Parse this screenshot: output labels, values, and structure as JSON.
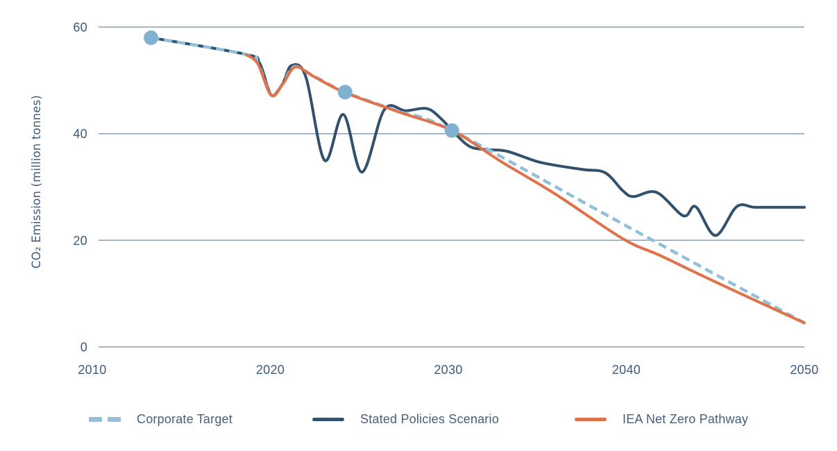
{
  "chart_data": {
    "type": "line",
    "title": "",
    "xlabel": "",
    "ylabel": "CO₂ Emission (million tonnes)",
    "xlim": [
      2010,
      2050
    ],
    "ylim": [
      0,
      60
    ],
    "x_ticks": [
      2010,
      2020,
      2030,
      2040,
      2050
    ],
    "y_ticks": [
      0,
      20,
      40,
      60
    ],
    "grid": "horizontal-only",
    "legend_position": "bottom",
    "colors": {
      "background": "#ffffff",
      "grid": "#8b9cb3",
      "tick_text": "#3d5a7a",
      "axis_title_text": "#3d5a7a",
      "legend_text": "#44607b"
    },
    "series": [
      {
        "name": "Corporate Target",
        "style": "dashed",
        "color": "#92c0d9",
        "width": 4.5,
        "dash": "12 7",
        "points": [
          [
            2013.3,
            58
          ],
          [
            2018.6,
            54.9
          ],
          [
            2019.3,
            53.2
          ],
          [
            2020.05,
            47.3
          ],
          [
            2020.7,
            49.4
          ],
          [
            2021.35,
            52.6
          ],
          [
            2022.4,
            50.9
          ],
          [
            2024.2,
            47.8
          ],
          [
            2027.2,
            44.2
          ],
          [
            2030.2,
            40.6
          ],
          [
            2040,
            22.7
          ],
          [
            2050,
            4.5
          ]
        ]
      },
      {
        "name": "Stated Policies Scenario",
        "style": "solid",
        "color": "#31516e",
        "width": 4,
        "dash": "",
        "points": [
          [
            2013.3,
            58
          ],
          [
            2018.6,
            54.9
          ],
          [
            2019.4,
            53.2
          ],
          [
            2020.05,
            47.3
          ],
          [
            2020.7,
            49.5
          ],
          [
            2021.2,
            52.8
          ],
          [
            2022.0,
            50.6
          ],
          [
            2023.05,
            35.0
          ],
          [
            2024.1,
            43.6
          ],
          [
            2025.15,
            32.8
          ],
          [
            2026.4,
            44.5
          ],
          [
            2027.6,
            44.3
          ],
          [
            2028.8,
            44.7
          ],
          [
            2029.6,
            42.8
          ],
          [
            2030.3,
            40.3
          ],
          [
            2031.2,
            37.6
          ],
          [
            2032.2,
            37.0
          ],
          [
            2033.3,
            36.7
          ],
          [
            2035.2,
            34.6
          ],
          [
            2037.5,
            33.3
          ],
          [
            2038.8,
            32.7
          ],
          [
            2039.8,
            29.3
          ],
          [
            2040.4,
            28.2
          ],
          [
            2041.7,
            29.0
          ],
          [
            2043.2,
            24.6
          ],
          [
            2043.9,
            26.3
          ],
          [
            2045.0,
            20.9
          ],
          [
            2046.2,
            26.3
          ],
          [
            2047.2,
            26.2
          ],
          [
            2048.5,
            26.2
          ],
          [
            2050,
            26.2
          ]
        ]
      },
      {
        "name": "IEA Net Zero Pathway",
        "style": "solid",
        "color": "#e0714a",
        "width": 4,
        "dash": "",
        "points": [
          [
            2018.65,
            54.8
          ],
          [
            2019.3,
            53.1
          ],
          [
            2020.05,
            47.2
          ],
          [
            2020.7,
            49.3
          ],
          [
            2021.4,
            52.5
          ],
          [
            2022.4,
            50.8
          ],
          [
            2024.2,
            47.7
          ],
          [
            2027.2,
            44.1
          ],
          [
            2030.2,
            40.6
          ],
          [
            2033,
            34.7
          ],
          [
            2036,
            28.7
          ],
          [
            2039.8,
            20.3
          ],
          [
            2042,
            17.0
          ],
          [
            2045,
            12.2
          ],
          [
            2050,
            4.5
          ]
        ]
      }
    ],
    "markers": {
      "belongs_to": "Corporate Target",
      "color": "#7fb2d1",
      "radius": 10.5,
      "points": [
        [
          2013.3,
          58
        ],
        [
          2024.2,
          47.8
        ],
        [
          2030.2,
          40.6
        ]
      ]
    }
  },
  "legend": {
    "items": [
      {
        "label": "Corporate Target"
      },
      {
        "label": "Stated Policies Scenario"
      },
      {
        "label": "IEA Net Zero Pathway"
      }
    ]
  }
}
